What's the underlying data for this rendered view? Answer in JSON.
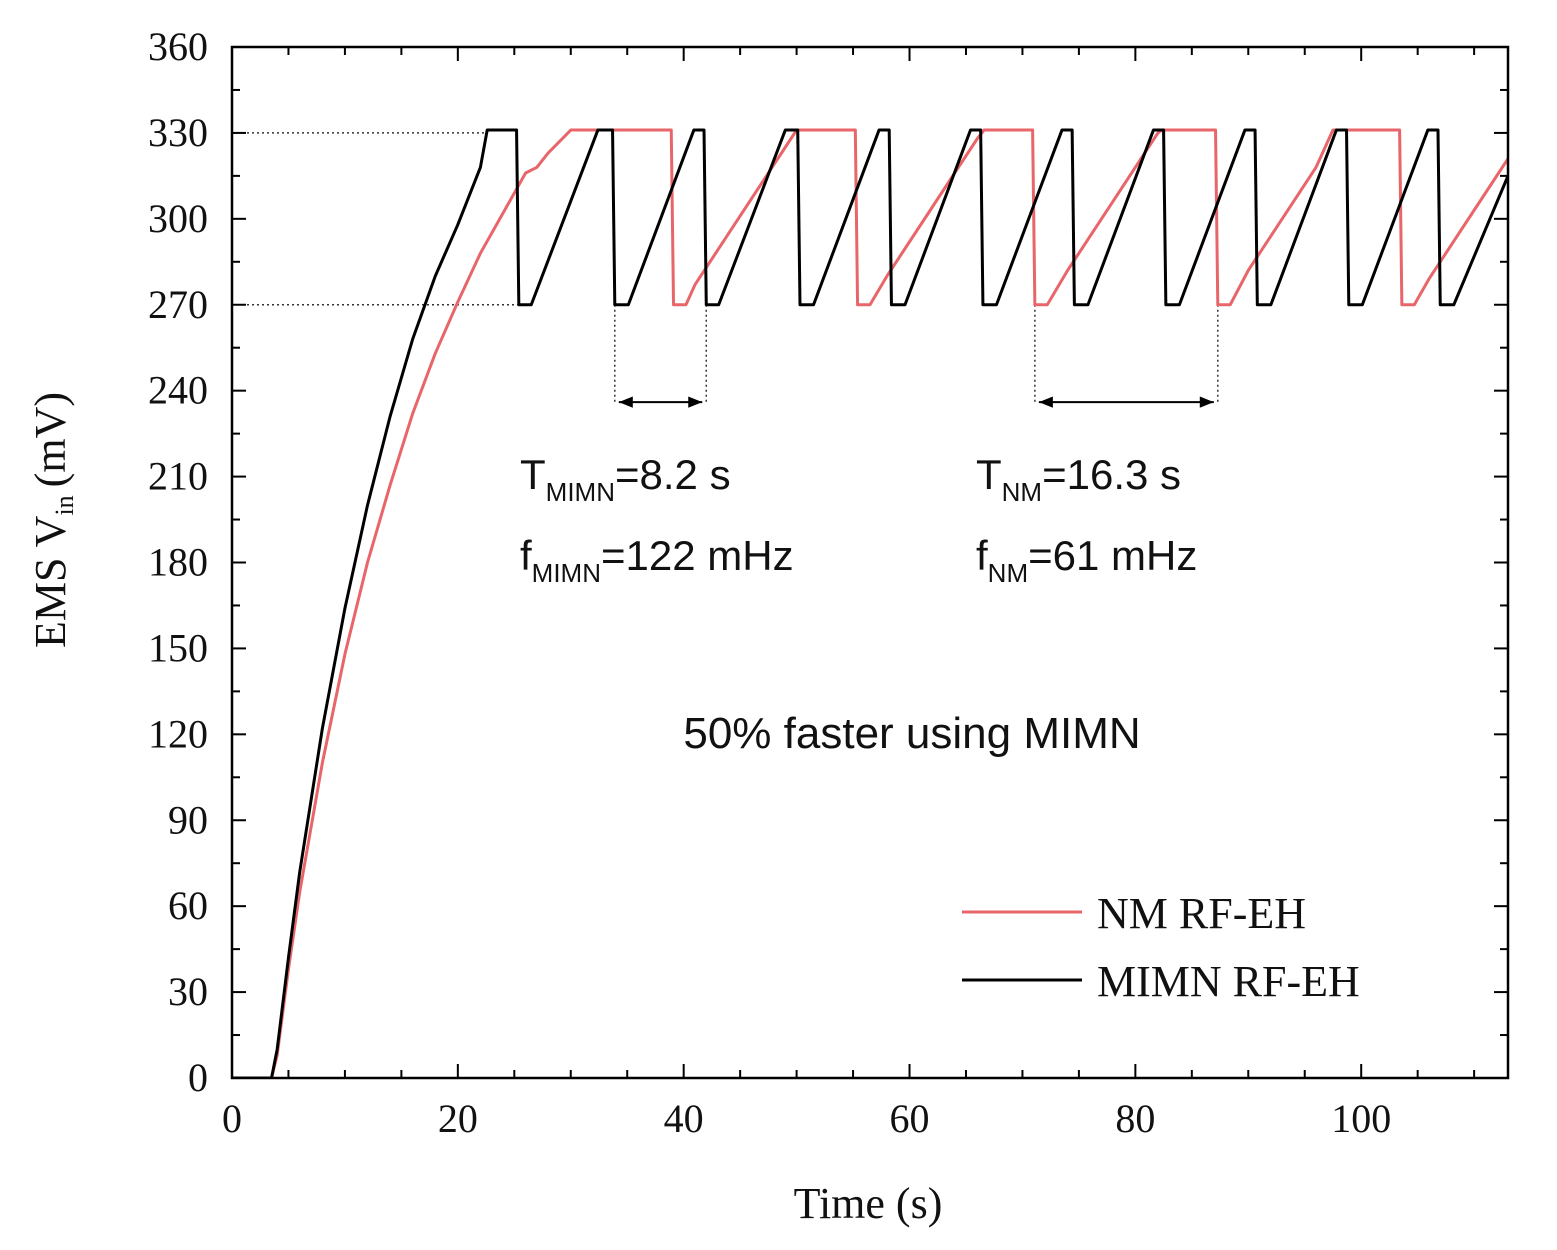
{
  "chart_data": {
    "type": "line",
    "title": "",
    "xlabel": "Time (s)",
    "ylabel_main": "EMS V",
    "ylabel_sub": "in",
    "ylabel_unit": "(mV)",
    "xlim": [
      0,
      113
    ],
    "ylim": [
      0,
      360
    ],
    "xticks": [
      0,
      20,
      40,
      60,
      80,
      100
    ],
    "yticks": [
      0,
      30,
      60,
      90,
      120,
      150,
      180,
      210,
      240,
      270,
      300,
      330,
      360
    ],
    "grid": false,
    "legend_position": "bottom-right",
    "series": [
      {
        "name": "NM RF-EH",
        "color": "#e8666a",
        "points": [
          [
            0,
            0
          ],
          [
            3.5,
            0
          ],
          [
            4,
            8
          ],
          [
            5,
            38
          ],
          [
            6,
            65
          ],
          [
            8,
            110
          ],
          [
            10,
            148
          ],
          [
            12,
            180
          ],
          [
            14,
            207
          ],
          [
            16,
            232
          ],
          [
            18,
            253
          ],
          [
            20,
            271
          ],
          [
            22,
            288
          ],
          [
            24,
            302
          ],
          [
            25,
            309
          ],
          [
            26,
            316
          ],
          [
            27,
            318
          ],
          [
            28,
            323
          ],
          [
            29,
            327
          ],
          [
            30,
            331
          ],
          [
            38.9,
            331
          ],
          [
            39.1,
            270
          ],
          [
            40.2,
            270
          ],
          [
            41,
            277
          ],
          [
            43,
            289
          ],
          [
            45,
            301
          ],
          [
            47,
            313
          ],
          [
            49,
            325
          ],
          [
            50,
            331
          ],
          [
            55.2,
            331
          ],
          [
            55.4,
            270
          ],
          [
            56.5,
            270
          ],
          [
            58,
            280
          ],
          [
            60,
            292
          ],
          [
            62,
            304
          ],
          [
            64,
            316
          ],
          [
            66,
            328
          ],
          [
            66.6,
            331
          ],
          [
            70.9,
            331
          ],
          [
            71.1,
            270
          ],
          [
            72.2,
            270
          ],
          [
            74,
            282
          ],
          [
            76,
            294
          ],
          [
            78,
            306
          ],
          [
            80,
            318
          ],
          [
            82,
            330
          ],
          [
            82.3,
            331
          ],
          [
            87.1,
            331
          ],
          [
            87.3,
            270
          ],
          [
            88.4,
            270
          ],
          [
            90,
            282
          ],
          [
            92,
            294
          ],
          [
            94,
            306
          ],
          [
            96,
            318
          ],
          [
            97.5,
            331
          ],
          [
            103.4,
            331
          ],
          [
            103.6,
            270
          ],
          [
            104.7,
            270
          ],
          [
            106,
            279
          ],
          [
            108,
            291
          ],
          [
            110,
            303
          ],
          [
            112,
            315
          ],
          [
            113,
            321
          ]
        ]
      },
      {
        "name": "MIMN RF-EH",
        "color": "#000000",
        "points": [
          [
            0,
            0
          ],
          [
            3.5,
            0
          ],
          [
            4,
            10
          ],
          [
            5,
            42
          ],
          [
            6,
            72
          ],
          [
            8,
            122
          ],
          [
            10,
            164
          ],
          [
            12,
            200
          ],
          [
            14,
            231
          ],
          [
            16,
            258
          ],
          [
            18,
            280
          ],
          [
            20,
            298
          ],
          [
            22,
            318
          ],
          [
            22.6,
            331
          ],
          [
            25.2,
            331
          ],
          [
            25.4,
            270
          ],
          [
            26.5,
            270
          ],
          [
            32.4,
            331
          ],
          [
            33.7,
            331
          ],
          [
            33.9,
            270
          ],
          [
            35.1,
            270
          ],
          [
            40.9,
            331
          ],
          [
            41.8,
            331
          ],
          [
            42,
            270
          ],
          [
            43.1,
            270
          ],
          [
            49,
            331
          ],
          [
            50.1,
            331
          ],
          [
            50.3,
            270
          ],
          [
            51.5,
            270
          ],
          [
            57.3,
            331
          ],
          [
            58.2,
            331
          ],
          [
            58.4,
            270
          ],
          [
            59.6,
            270
          ],
          [
            65.4,
            331
          ],
          [
            66.3,
            331
          ],
          [
            66.5,
            270
          ],
          [
            67.7,
            270
          ],
          [
            73.5,
            331
          ],
          [
            74.4,
            331
          ],
          [
            74.6,
            270
          ],
          [
            75.8,
            270
          ],
          [
            81.6,
            331
          ],
          [
            82.5,
            331
          ],
          [
            82.7,
            270
          ],
          [
            83.9,
            270
          ],
          [
            89.7,
            331
          ],
          [
            90.6,
            331
          ],
          [
            90.8,
            270
          ],
          [
            92,
            270
          ],
          [
            97.8,
            331
          ],
          [
            98.7,
            331
          ],
          [
            98.9,
            270
          ],
          [
            100.1,
            270
          ],
          [
            105.9,
            331
          ],
          [
            106.8,
            331
          ],
          [
            107,
            270
          ],
          [
            108.2,
            270
          ],
          [
            113,
            315
          ]
        ]
      }
    ],
    "reference_lines": [
      {
        "y": 330,
        "x_from": 0,
        "x_to": 22.6
      },
      {
        "y": 270,
        "x_from": 0,
        "x_to": 25.4
      }
    ],
    "period_markers": [
      {
        "x_from": 33.9,
        "x_to": 42.0,
        "y_arrow": 236
      },
      {
        "x_from": 71.1,
        "x_to": 87.3,
        "y_arrow": 236
      }
    ],
    "annotations": {
      "mimn_period": {
        "main": "T",
        "sub": "MIMN",
        "value": "=8.2 s"
      },
      "mimn_freq": {
        "main": "f",
        "sub": "MIMN",
        "value": "=122 mHz"
      },
      "nm_period": {
        "main": "T",
        "sub": "NM",
        "value": "=16.3 s"
      },
      "nm_freq": {
        "main": "f",
        "sub": "NM",
        "value": "=61 mHz"
      },
      "summary": "50% faster using MIMN"
    }
  }
}
